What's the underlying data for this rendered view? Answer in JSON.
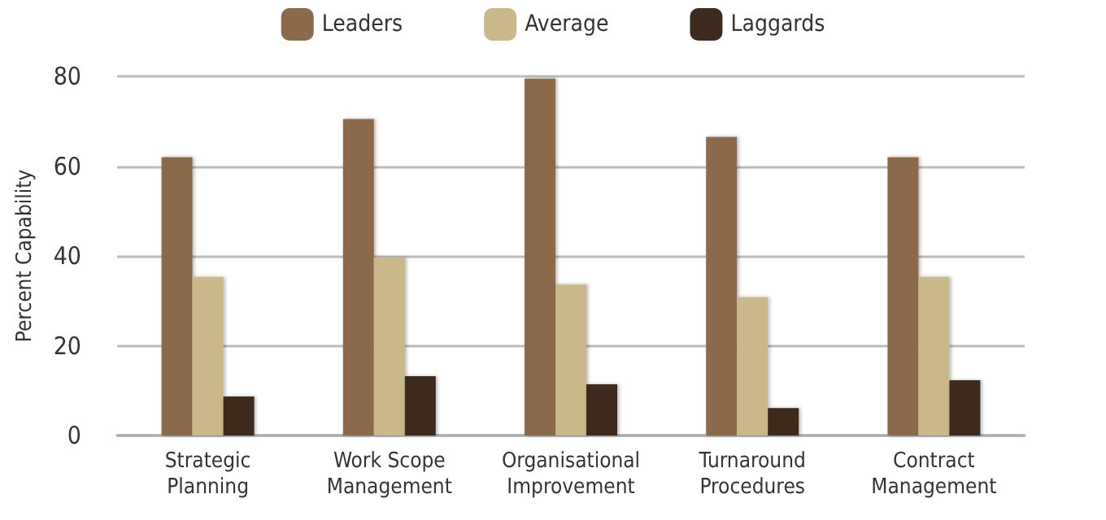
{
  "chart_data": {
    "type": "bar",
    "ylabel": "Percent Capability",
    "categories": [
      "Strategic\nPlanning",
      "Work Scope\nManagement",
      "Organisational\nImprovement",
      "Turnaround\nProcedures",
      "Contract\nManagement"
    ],
    "series": [
      {
        "name": "Leaders",
        "color": "#8b6a4c",
        "values": [
          62,
          70.5,
          79.5,
          66.5,
          62
        ]
      },
      {
        "name": "Average",
        "color": "#c8b88a",
        "values": [
          35.3,
          39.7,
          33.6,
          30.8,
          35.3
        ]
      },
      {
        "name": "Laggards",
        "color": "#3d2b1f",
        "values": [
          8.7,
          13.2,
          11.4,
          6.1,
          12.3
        ]
      }
    ],
    "ylim": [
      0,
      80
    ],
    "yticks": [
      0,
      20,
      40,
      60,
      80
    ],
    "grid": "y",
    "legend": "top"
  }
}
